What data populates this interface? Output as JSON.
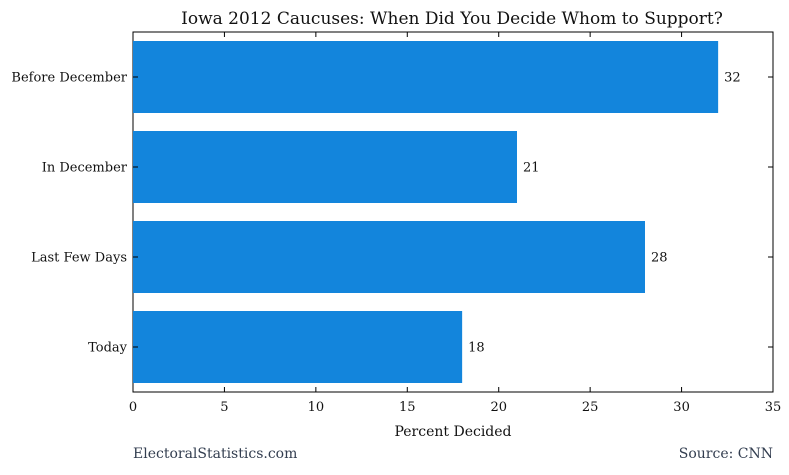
{
  "chart_data": {
    "type": "bar",
    "orientation": "horizontal",
    "title": "Iowa 2012 Caucuses: When Did You Decide Whom to Support?",
    "xlabel": "Percent Decided",
    "ylabel": "",
    "categories": [
      "Before December",
      "In December",
      "Last Few Days",
      "Today"
    ],
    "values": [
      32,
      21,
      28,
      18
    ],
    "xlim": [
      0,
      35
    ],
    "xticks": [
      0,
      5,
      10,
      15,
      20,
      25,
      30,
      35
    ],
    "bar_color": "#1385dc",
    "grid": false,
    "data_labels": true
  },
  "footer": {
    "left": "ElectoralStatistics.com",
    "right": "Source: CNN"
  }
}
